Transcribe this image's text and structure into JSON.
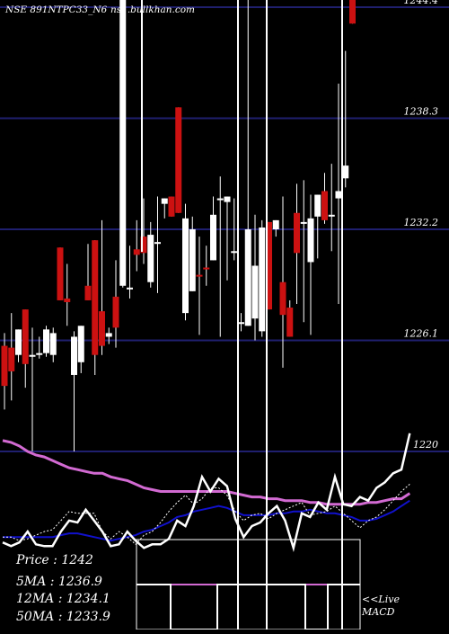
{
  "header": {
    "title": "NSE 891NTPC33_N6",
    "source": "ns1.bullkhan.com"
  },
  "colors": {
    "background": "#000000",
    "grid": "#1f1f6e",
    "up": "#ffffff",
    "down": "#cc1111",
    "price_line": "#ffffff",
    "ma_long": "#d26ad2",
    "ma_short": "#1111cc",
    "text": "#ffffff"
  },
  "chart_data": {
    "type": "candlestick",
    "price_axis": {
      "ticks": [
        "1244.4",
        "1238.3",
        "1232.2",
        "1226.1",
        "1220"
      ],
      "ylim": [
        1220,
        1244.4
      ]
    },
    "candles": [
      {
        "o": 1225.8,
        "h": 1226.5,
        "l": 1222.3,
        "c": 1223.6,
        "dir": "down"
      },
      {
        "o": 1225.7,
        "h": 1227.6,
        "l": 1222.8,
        "c": 1224.4,
        "dir": "down"
      },
      {
        "o": 1225.3,
        "h": 1226.7,
        "l": 1224.9,
        "c": 1226.7,
        "dir": "up"
      },
      {
        "o": 1224.8,
        "h": 1227.8,
        "l": 1223.5,
        "c": 1227.8,
        "dir": "down"
      },
      {
        "o": 1225.2,
        "h": 1226.8,
        "l": 1220.0,
        "c": 1225.3,
        "dir": "up"
      },
      {
        "o": 1225.4,
        "h": 1226.3,
        "l": 1225.1,
        "c": 1225.4,
        "dir": "up"
      },
      {
        "o": 1225.4,
        "h": 1226.9,
        "l": 1225.2,
        "c": 1226.7,
        "dir": "up"
      },
      {
        "o": 1225.3,
        "h": 1226.8,
        "l": 1224.9,
        "c": 1226.5,
        "dir": "up"
      },
      {
        "o": 1231.2,
        "h": 1231.2,
        "l": 1228.3,
        "c": 1228.3,
        "dir": "down"
      },
      {
        "o": 1228.2,
        "h": 1230.3,
        "l": 1226.9,
        "c": 1228.4,
        "dir": "down"
      },
      {
        "o": 1226.3,
        "h": 1226.6,
        "l": 1220.0,
        "c": 1224.2,
        "dir": "up"
      },
      {
        "o": 1226.9,
        "h": 1226.9,
        "l": 1224.3,
        "c": 1224.9,
        "dir": "up"
      },
      {
        "o": 1229.1,
        "h": 1231.4,
        "l": 1228.3,
        "c": 1228.3,
        "dir": "down"
      },
      {
        "o": 1231.6,
        "h": 1231.6,
        "l": 1224.2,
        "c": 1225.3,
        "dir": "down"
      },
      {
        "o": 1227.7,
        "h": 1232.7,
        "l": 1225.3,
        "c": 1225.8,
        "dir": "down"
      },
      {
        "o": 1226.3,
        "h": 1226.8,
        "l": 1225.9,
        "c": 1226.5,
        "dir": "up"
      },
      {
        "o": 1228.5,
        "h": 1230.5,
        "l": 1225.7,
        "c": 1226.8,
        "dir": "down"
      },
      {
        "o": 1249.0,
        "h": 1249.0,
        "l": 1229.0,
        "c": 1229.1,
        "dir": "up"
      },
      {
        "o": 1229.0,
        "h": 1231.3,
        "l": 1228.4,
        "c": 1229.0,
        "dir": "up"
      },
      {
        "o": 1230.8,
        "h": 1232.7,
        "l": 1229.9,
        "c": 1231.1,
        "dir": "down"
      },
      {
        "o": 1230.9,
        "h": 1233.9,
        "l": 1230.3,
        "c": 1231.8,
        "dir": "down"
      },
      {
        "o": 1229.3,
        "h": 1232.6,
        "l": 1229.0,
        "c": 1231.9,
        "dir": "up"
      },
      {
        "o": 1231.4,
        "h": 1234.0,
        "l": 1228.7,
        "c": 1231.5,
        "dir": "up"
      },
      {
        "o": 1233.9,
        "h": 1233.9,
        "l": 1232.8,
        "c": 1233.6,
        "dir": "up"
      },
      {
        "o": 1234.0,
        "h": 1234.0,
        "l": 1232.9,
        "c": 1232.9,
        "dir": "down"
      },
      {
        "o": 1238.9,
        "h": 1238.9,
        "l": 1233.1,
        "c": 1233.1,
        "dir": "down"
      },
      {
        "o": 1232.8,
        "h": 1233.6,
        "l": 1227.2,
        "c": 1227.6,
        "dir": "up"
      },
      {
        "o": 1232.2,
        "h": 1232.9,
        "l": 1228.8,
        "c": 1228.8,
        "dir": "up"
      },
      {
        "o": 1229.7,
        "h": 1231.8,
        "l": 1226.4,
        "c": 1229.7,
        "dir": "down"
      },
      {
        "o": 1230.0,
        "h": 1231.3,
        "l": 1229.1,
        "c": 1230.1,
        "dir": "down"
      },
      {
        "o": 1233.0,
        "h": 1234.0,
        "l": 1230.5,
        "c": 1230.5,
        "dir": "up"
      },
      {
        "o": 1233.9,
        "h": 1235.1,
        "l": 1226.3,
        "c": 1233.8,
        "dir": "up"
      },
      {
        "o": 1234.0,
        "h": 1234.0,
        "l": 1229.4,
        "c": 1233.7,
        "dir": "up"
      },
      {
        "o": 1231.0,
        "h": 1233.9,
        "l": 1230.5,
        "c": 1231.0,
        "dir": "up"
      },
      {
        "o": 1227.1,
        "h": 1227.6,
        "l": 1226.6,
        "c": 1227.1,
        "dir": "up"
      },
      {
        "o": 1232.2,
        "h": 1249.0,
        "l": 1226.9,
        "c": 1226.9,
        "dir": "up"
      },
      {
        "o": 1230.2,
        "h": 1233.0,
        "l": 1226.1,
        "c": 1227.3,
        "dir": "up"
      },
      {
        "o": 1226.6,
        "h": 1232.7,
        "l": 1226.3,
        "c": 1232.3,
        "dir": "up"
      },
      {
        "o": 1232.6,
        "h": 1232.6,
        "l": 1227.8,
        "c": 1227.8,
        "dir": "down"
      },
      {
        "o": 1232.7,
        "h": 1232.7,
        "l": 1231.8,
        "c": 1232.2,
        "dir": "up"
      },
      {
        "o": 1229.3,
        "h": 1234.0,
        "l": 1224.6,
        "c": 1227.5,
        "dir": "down"
      },
      {
        "o": 1227.9,
        "h": 1228.3,
        "l": 1226.3,
        "c": 1226.3,
        "dir": "down"
      },
      {
        "o": 1233.1,
        "h": 1234.7,
        "l": 1228.1,
        "c": 1230.9,
        "dir": "down"
      },
      {
        "o": 1232.6,
        "h": 1234.9,
        "l": 1227.1,
        "c": 1232.6,
        "dir": "up"
      },
      {
        "o": 1232.8,
        "h": 1234.1,
        "l": 1226.4,
        "c": 1230.4,
        "dir": "up"
      },
      {
        "o": 1232.9,
        "h": 1234.1,
        "l": 1230.6,
        "c": 1234.1,
        "dir": "up"
      },
      {
        "o": 1232.7,
        "h": 1235.3,
        "l": 1232.5,
        "c": 1234.3,
        "dir": "down"
      },
      {
        "o": 1233.0,
        "h": 1235.8,
        "l": 1231.0,
        "c": 1233.0,
        "dir": "up"
      },
      {
        "o": 1233.9,
        "h": 1240.2,
        "l": 1228.1,
        "c": 1234.3,
        "dir": "up"
      },
      {
        "o": 1235.0,
        "h": 1242.0,
        "l": 1234.5,
        "c": 1235.7,
        "dir": "up"
      },
      {
        "o": 1248.0,
        "h": 1248.0,
        "l": 1243.5,
        "c": 1243.5,
        "dir": "down"
      }
    ],
    "ma_long": [
      1220.6,
      1220.5,
      1220.3,
      1220.0,
      1219.8,
      1219.7,
      1219.5,
      1219.3,
      1219.1,
      1219.0,
      1218.9,
      1218.8,
      1218.8,
      1218.6,
      1218.5,
      1218.4,
      1218.2,
      1218.0,
      1217.9,
      1217.8,
      1217.8,
      1217.8,
      1217.8,
      1217.8,
      1217.8,
      1217.8,
      1217.8,
      1217.8,
      1217.7,
      1217.6,
      1217.5,
      1217.5,
      1217.4,
      1217.4,
      1217.3,
      1217.3,
      1217.3,
      1217.2,
      1217.2,
      1217.1,
      1217.1,
      1217.1,
      1217.1,
      1217.1,
      1217.2,
      1217.2,
      1217.3,
      1217.4,
      1217.4,
      1217.7
    ],
    "macd_line": [
      1215.3,
      1215.3,
      1215.1,
      1215.2,
      1215.4,
      1215.6,
      1215.7,
      1216.2,
      1216.7,
      1216.6,
      1216.6,
      1216.6,
      1215.6,
      1215.2,
      1215.6,
      1215.3,
      1214.9,
      1215.4,
      1215.6,
      1216.1,
      1216.7,
      1217.2,
      1217.6,
      1217.1,
      1217.4,
      1218.0,
      1218.0,
      1217.6,
      1216.7,
      1216.2,
      1216.5,
      1216.6,
      1216.3,
      1216.6,
      1216.8,
      1217.0,
      1217.2,
      1216.5,
      1216.6,
      1216.7,
      1217.0,
      1216.6,
      1216.2,
      1215.8,
      1216.2,
      1216.4,
      1216.8,
      1217.3,
      1217.8,
      1218.2
    ],
    "macd_signal": [
      1215.3,
      1215.3,
      1215.3,
      1215.3,
      1215.3,
      1215.3,
      1215.3,
      1215.4,
      1215.5,
      1215.5,
      1215.4,
      1215.3,
      1215.2,
      1215.1,
      1215.2,
      1215.3,
      1215.4,
      1215.6,
      1215.7,
      1215.9,
      1216.1,
      1216.4,
      1216.5,
      1216.7,
      1216.8,
      1216.9,
      1217.0,
      1216.9,
      1216.7,
      1216.5,
      1216.5,
      1216.5,
      1216.5,
      1216.6,
      1216.6,
      1216.7,
      1216.7,
      1216.8,
      1216.7,
      1216.6,
      1216.6,
      1216.5,
      1216.4,
      1216.2,
      1216.2,
      1216.3,
      1216.5,
      1216.7,
      1217.0,
      1217.3
    ],
    "price_line": [
      1215.0,
      1214.8,
      1215.0,
      1215.6,
      1214.9,
      1214.8,
      1214.8,
      1215.6,
      1216.2,
      1216.1,
      1216.8,
      1216.2,
      1215.6,
      1214.8,
      1214.9,
      1215.6,
      1215.1,
      1214.7,
      1214.9,
      1214.9,
      1215.2,
      1216.2,
      1215.9,
      1217.0,
      1218.6,
      1217.8,
      1218.5,
      1218.1,
      1216.3,
      1215.3,
      1215.9,
      1216.1,
      1216.6,
      1217.0,
      1216.2,
      1214.7,
      1216.6,
      1216.4,
      1217.2,
      1216.8,
      1218.6,
      1217.1,
      1217.0,
      1217.5,
      1217.3,
      1218.0,
      1218.3,
      1218.8,
      1219.0,
      1221.0
    ],
    "legend": {
      "price": "Price : 1242",
      "ma5": "5MA : 1236.9",
      "ma12": "12MA : 1234.1",
      "ma50": "50MA : 1233.9"
    },
    "macd_panel": {
      "label_line1": "<<Live",
      "label_line2": "MACD"
    }
  }
}
